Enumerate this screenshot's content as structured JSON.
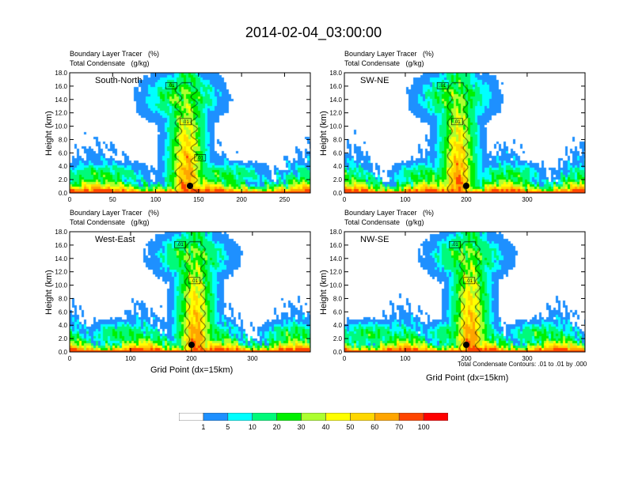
{
  "title": "2014-02-04_03:00:00",
  "subtitle_line1": "Boundary Layer Tracer   (%)",
  "subtitle_line2": "Total Condensate   (g/kg)",
  "y_axis_label": "Height (km)",
  "x_axis_label": "Grid Point (dx=15km)",
  "contour_note": "Total Condensate Contours: .01 to .01 by .000",
  "colorbar": {
    "levels": [
      "1",
      "5",
      "10",
      "20",
      "30",
      "40",
      "50",
      "60",
      "70",
      "100"
    ],
    "colors": [
      "#ffffff",
      "#1e90ff",
      "#00ffff",
      "#00fa7a",
      "#00f000",
      "#adff2f",
      "#ffff00",
      "#ffd700",
      "#ffa500",
      "#ff4500",
      "#ff0000"
    ]
  },
  "chart_data": [
    {
      "type": "heatmap",
      "name": "South-North",
      "xlim": [
        0,
        280
      ],
      "ylim": [
        0,
        18
      ],
      "xticks": [
        "0",
        "50",
        "100",
        "150",
        "200",
        "250"
      ],
      "xtick_values": [
        0,
        50,
        100,
        150,
        200,
        250
      ],
      "yticks": [
        "0.0",
        "2.0",
        "4.0",
        "6.0",
        "8.0",
        "10.0",
        "12.0",
        "14.0",
        "16.0",
        "18.0"
      ],
      "marker_x": 140,
      "plume_center": 135,
      "contour_labels": [
        ".01",
        ".01",
        ".01"
      ]
    },
    {
      "type": "heatmap",
      "name": "SW-NE",
      "xlim": [
        0,
        395
      ],
      "ylim": [
        0,
        18
      ],
      "xticks": [
        "0",
        "100",
        "200",
        "300"
      ],
      "xtick_values": [
        0,
        100,
        200,
        300
      ],
      "yticks": [
        "0.0",
        "2.0",
        "4.0",
        "6.0",
        "8.0",
        "10.0",
        "12.0",
        "14.0",
        "16.0",
        "18.0"
      ],
      "marker_x": 200,
      "plume_center": 185,
      "contour_labels": [
        ".01",
        ".01"
      ]
    },
    {
      "type": "heatmap",
      "name": "West-East",
      "xlim": [
        0,
        395
      ],
      "ylim": [
        0,
        18
      ],
      "xticks": [
        "0",
        "100",
        "200",
        "300"
      ],
      "xtick_values": [
        0,
        100,
        200,
        300
      ],
      "yticks": [
        "0.0",
        "2.0",
        "4.0",
        "6.0",
        "8.0",
        "10.0",
        "12.0",
        "14.0",
        "16.0",
        "18.0"
      ],
      "marker_x": 200,
      "plume_center": 205,
      "contour_labels": [
        ".01",
        ".01"
      ]
    },
    {
      "type": "heatmap",
      "name": "NW-SE",
      "xlim": [
        0,
        395
      ],
      "ylim": [
        0,
        18
      ],
      "xticks": [
        "0",
        "100",
        "200",
        "300"
      ],
      "xtick_values": [
        0,
        100,
        200,
        300
      ],
      "yticks": [
        "0.0",
        "2.0",
        "4.0",
        "6.0",
        "8.0",
        "10.0",
        "12.0",
        "14.0",
        "16.0",
        "18.0"
      ],
      "marker_x": 200,
      "plume_center": 205,
      "contour_labels": [
        ".01",
        ".01"
      ]
    }
  ]
}
